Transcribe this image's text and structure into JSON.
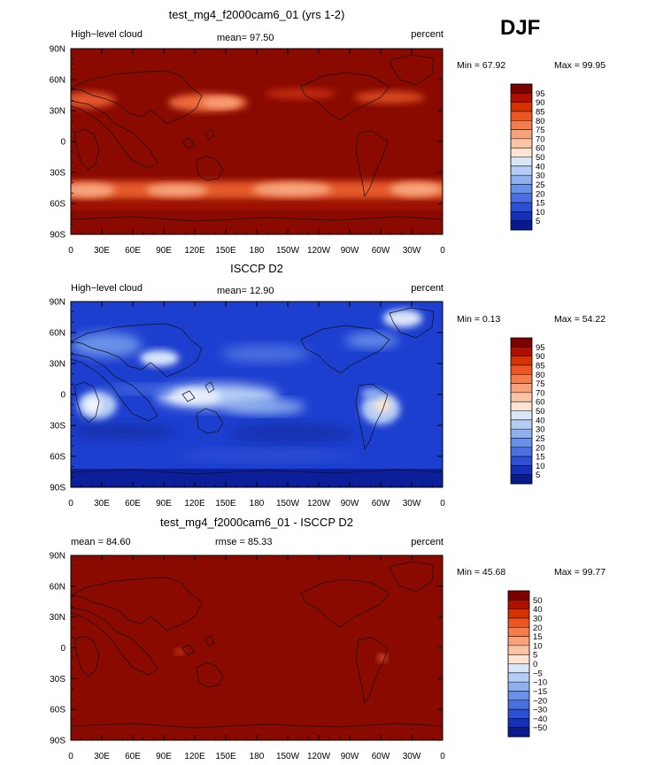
{
  "chart_data": {
    "season": "DJF",
    "x_ticks": [
      "0",
      "30E",
      "60E",
      "90E",
      "120E",
      "150E",
      "180",
      "150W",
      "120W",
      "90W",
      "60W",
      "30W",
      "0"
    ],
    "y_ticks": [
      "90N",
      "60N",
      "30N",
      "0",
      "30S",
      "60S",
      "90S"
    ],
    "panels": [
      {
        "type": "contour-map",
        "title": "test_mg4_f2000cam6_01 (yrs 1-2)",
        "left_label": "High−level cloud",
        "center_label": "mean=  97.50",
        "right_label": "percent",
        "min_label": "Min =  67.92",
        "max_label": "Max =  99.95",
        "min": 67.92,
        "max": 99.95,
        "mean": 97.5,
        "colorbar_levels": [
          "95",
          "90",
          "85",
          "80",
          "75",
          "70",
          "60",
          "50",
          "40",
          "30",
          "25",
          "20",
          "15",
          "10",
          "5"
        ]
      },
      {
        "type": "contour-map",
        "title": "ISCCP D2",
        "left_label": "High−level cloud",
        "center_label": "mean=  12.90",
        "right_label": "percent",
        "min_label": "Min =   0.13",
        "max_label": "Max =  54.22",
        "min": 0.13,
        "max": 54.22,
        "mean": 12.9,
        "colorbar_levels": [
          "95",
          "90",
          "85",
          "80",
          "75",
          "70",
          "60",
          "50",
          "40",
          "30",
          "25",
          "20",
          "15",
          "10",
          "5"
        ]
      },
      {
        "type": "contour-map",
        "title": "test_mg4_f2000cam6_01 - ISCCP D2",
        "left_label": "mean =  84.60",
        "center_label": "rmse =  85.33",
        "right_label": "percent",
        "min_label": "Min =  45.68",
        "max_label": "Max =  99.77",
        "min": 45.68,
        "max": 99.77,
        "mean": 84.6,
        "rmse": 85.33,
        "colorbar_levels": [
          "50",
          "40",
          "30",
          "20",
          "15",
          "10",
          "5",
          "0",
          "−5",
          "−10",
          "−15",
          "−20",
          "−30",
          "−40",
          "−50"
        ]
      }
    ]
  },
  "colors": {
    "palette_top_to_bottom": [
      "#7d0000",
      "#b00f00",
      "#d63200",
      "#ee5522",
      "#f57d4d",
      "#f8a27c",
      "#fbc4a6",
      "#fde3d2",
      "#d9e6fa",
      "#b5cdf5",
      "#8fb0ee",
      "#6a91e8",
      "#4a6fe0",
      "#2d4fd4",
      "#1530b8",
      "#081a8c"
    ]
  }
}
